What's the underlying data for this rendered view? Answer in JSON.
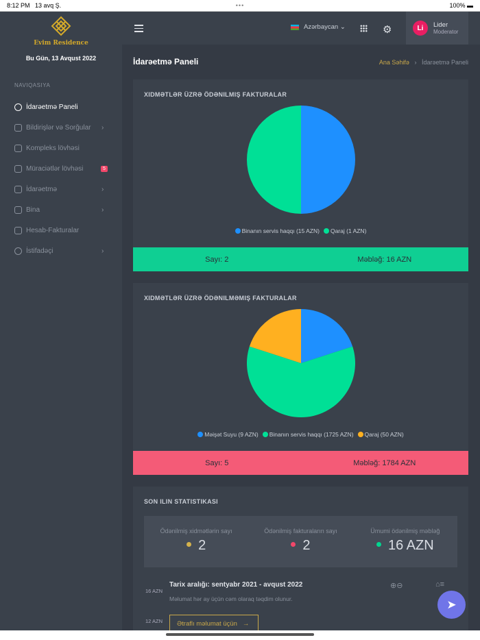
{
  "status": {
    "time": "8:12 PM",
    "date": "13 avq Ş.",
    "dots": "•••",
    "battery": "100%"
  },
  "sidebar": {
    "logo_text": "Evim Residence",
    "today": "Bu Gün, 13 Avqust 2022",
    "nav_heading": "NAVIQASIYA",
    "items": [
      {
        "label": "İdarəetmə Paneli"
      },
      {
        "label": "Bildirişlər və Sorğular"
      },
      {
        "label": "Kompleks lövhəsi"
      },
      {
        "label": "Müraciətlər lövhəsi",
        "badge": "5"
      },
      {
        "label": "İdarəetmə"
      },
      {
        "label": "Bina"
      },
      {
        "label": "Hesab-Fakturalar"
      },
      {
        "label": "İstifadəçi"
      }
    ]
  },
  "topbar": {
    "language": "Azərbaycan",
    "user_name": "Lider",
    "user_role": "Moderator",
    "avatar_initials": "Li"
  },
  "page": {
    "title": "İdarəetmə Paneli",
    "breadcrumb_home": "Ana Səhifə",
    "breadcrumb_current": "İdarəetmə Paneli"
  },
  "chart_data": [
    {
      "type": "pie",
      "title": "XIDMƏTLƏR ÜZRƏ ÖDƏNILMIŞ FAKTURALAR",
      "slices": [
        {
          "label": "Binanın servis haqqı (15 AZN)",
          "value": 1,
          "color": "#1e90ff"
        },
        {
          "label": "Qaraj (1 AZN)",
          "value": 1,
          "color": "#00e096"
        }
      ],
      "legend": "bottom"
    },
    {
      "type": "pie",
      "title": "XIDMƏTLƏR ÜZRƏ ÖDƏNILMƏMIŞ FAKTURALAR",
      "slices": [
        {
          "label": "Məişət Suyu (9 AZN)",
          "value": 1,
          "color": "#1e90ff"
        },
        {
          "label": "Binanın servis haqqı (1725 AZN)",
          "value": 3,
          "color": "#00e096"
        },
        {
          "label": "Qaraj (50 AZN)",
          "value": 1,
          "color": "#ffb020"
        }
      ],
      "legend": "bottom"
    }
  ],
  "paid": {
    "count": "Sayı: 2",
    "amount": "Məbləğ: 16 AZN",
    "color": "#0fcf93"
  },
  "unpaid": {
    "count": "Sayı: 5",
    "amount": "Məbləğ: 1784 AZN",
    "color": "#f45b77"
  },
  "stats": {
    "title": "SON ILIN STATISTIKASI",
    "items": [
      {
        "label": "Ödənilmiş xidmətlərin sayı",
        "value": "2",
        "color": "#d4b24c"
      },
      {
        "label": "Ödənilmiş fakturaların sayı",
        "value": "2",
        "color": "#f2476a"
      },
      {
        "label": "Ümumi ödənilmiş məbləğ",
        "value": "16 AZN",
        "color": "#00d68f"
      }
    ],
    "range_title": "Tarix aralığı: sentyabr 2021 - avqust 2022",
    "range_sub": "Məlumat hər ay üçün cəm olaraq təqdim olunur.",
    "more_button": "Ətraflı məlumat üçün",
    "y_ticks": [
      "16 AZN",
      "12 AZN"
    ]
  }
}
